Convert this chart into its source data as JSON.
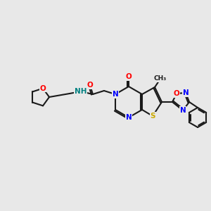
{
  "bg_color": "#e8e8e8",
  "bond_color": "#1a1a1a",
  "bond_width": 1.5,
  "atom_colors": {
    "N": "#0000ff",
    "O": "#ff0000",
    "S": "#ccaa00",
    "H": "#008080",
    "C": "#1a1a1a"
  },
  "font_size": 7.5
}
